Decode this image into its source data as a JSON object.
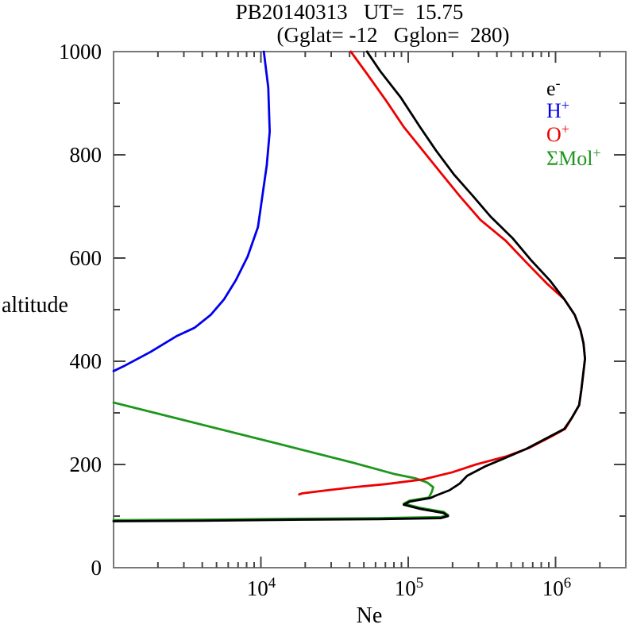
{
  "title": {
    "line1": "PB20140313   UT=  15.75",
    "line2": "(Gglat= -12   Gglon=  280)"
  },
  "axes": {
    "y_label": "altitude",
    "x_label": "Ne",
    "y_ticks": [
      {
        "label": "0",
        "alt": 0
      },
      {
        "label": "200",
        "alt": 200
      },
      {
        "label": "400",
        "alt": 400
      },
      {
        "label": "600",
        "alt": 600
      },
      {
        "label": "800",
        "alt": 800
      },
      {
        "label": "1000",
        "alt": 1000
      }
    ],
    "x_ticks": [
      {
        "base": "10",
        "exp": "4",
        "value": 10000
      },
      {
        "base": "10",
        "exp": "5",
        "value": 100000
      },
      {
        "base": "10",
        "exp": "6",
        "value": 1000000
      }
    ],
    "frame_color": "#787878",
    "tick_color": "#454545"
  },
  "legend": {
    "items": [
      {
        "base": "e",
        "sup": "-",
        "color": "#000000",
        "series": "electrons"
      },
      {
        "base": "H",
        "sup": "+",
        "color": "#0000ee",
        "series": "hydrogen-ions"
      },
      {
        "base": "O",
        "sup": "+",
        "color": "#ee0000",
        "series": "oxygen-ions"
      },
      {
        "base": "ΣMol",
        "sup": "+",
        "color": "#1e961e",
        "series": "molecular-ions"
      }
    ]
  },
  "chart_data": {
    "type": "line",
    "title": "PB20140313 UT= 15.75 (Gglat= -12 Gglon= 280)",
    "xlabel": "Ne",
    "ylabel": "altitude",
    "x_scale": "log",
    "x_range": [
      1000,
      3000000
    ],
    "y_range": [
      0,
      1000
    ],
    "grid": false,
    "legend_position": "upper-right-inside",
    "points_format": "[log10_of_Ne, altitude]",
    "series": [
      {
        "name": "H+",
        "color": "#0000ee",
        "points": [
          [
            4.02,
            1000
          ],
          [
            4.05,
            930
          ],
          [
            4.06,
            845
          ],
          [
            4.04,
            780
          ],
          [
            4.0,
            700
          ],
          [
            3.98,
            660
          ],
          [
            3.91,
            603
          ],
          [
            3.83,
            557
          ],
          [
            3.75,
            520
          ],
          [
            3.66,
            490
          ],
          [
            3.55,
            465
          ],
          [
            3.43,
            449
          ],
          [
            3.25,
            418
          ],
          [
            3.08,
            392
          ],
          [
            3.0,
            381
          ]
        ]
      },
      {
        "name": "SigmaMol+",
        "color": "#1e961e",
        "points": [
          [
            3.0,
            320
          ],
          [
            3.56,
            280
          ],
          [
            4.12,
            240
          ],
          [
            4.63,
            203
          ],
          [
            4.9,
            182
          ],
          [
            5.05,
            173
          ],
          [
            5.13,
            165
          ],
          [
            5.17,
            156
          ],
          [
            5.16,
            147
          ],
          [
            5.14,
            136
          ],
          [
            5.01,
            130
          ],
          [
            4.97,
            124
          ],
          [
            5.08,
            116
          ],
          [
            5.24,
            108
          ],
          [
            5.27,
            102
          ],
          [
            5.22,
            98
          ],
          [
            4.8,
            96
          ],
          [
            4.3,
            95
          ],
          [
            3.6,
            93
          ],
          [
            3.0,
            92
          ]
        ]
      },
      {
        "name": "O+",
        "color": "#ee0000",
        "points": [
          [
            4.61,
            1000
          ],
          [
            4.72,
            957
          ],
          [
            4.85,
            905
          ],
          [
            4.97,
            854
          ],
          [
            5.1,
            808
          ],
          [
            5.23,
            762
          ],
          [
            5.35,
            720
          ],
          [
            5.49,
            674
          ],
          [
            5.66,
            634
          ],
          [
            5.8,
            592
          ],
          [
            5.94,
            551
          ],
          [
            6.06,
            520
          ],
          [
            6.13,
            490
          ],
          [
            6.17,
            460
          ],
          [
            6.19,
            435
          ],
          [
            6.2,
            405
          ],
          [
            6.19,
            380
          ],
          [
            6.175,
            345
          ],
          [
            6.16,
            315
          ],
          [
            6.11,
            290
          ],
          [
            6.065,
            269
          ],
          [
            5.97,
            254
          ],
          [
            5.82,
            232
          ],
          [
            5.67,
            216
          ],
          [
            5.46,
            200
          ],
          [
            5.3,
            185
          ],
          [
            5.1,
            171
          ],
          [
            4.85,
            162
          ],
          [
            4.63,
            156
          ],
          [
            4.45,
            150
          ],
          [
            4.28,
            144
          ],
          [
            4.26,
            142
          ]
        ]
      },
      {
        "name": "e-",
        "color": "#000000",
        "points": [
          [
            4.72,
            1000
          ],
          [
            4.81,
            962
          ],
          [
            4.95,
            911
          ],
          [
            5.08,
            854
          ],
          [
            5.19,
            808
          ],
          [
            5.31,
            762
          ],
          [
            5.44,
            720
          ],
          [
            5.56,
            680
          ],
          [
            5.71,
            638
          ],
          [
            5.83,
            597
          ],
          [
            5.96,
            557
          ],
          [
            6.06,
            520
          ],
          [
            6.13,
            490
          ],
          [
            6.17,
            460
          ],
          [
            6.19,
            435
          ],
          [
            6.2,
            405
          ],
          [
            6.19,
            380
          ],
          [
            6.175,
            345
          ],
          [
            6.16,
            315
          ],
          [
            6.11,
            290
          ],
          [
            6.06,
            269
          ],
          [
            5.96,
            254
          ],
          [
            5.8,
            230
          ],
          [
            5.67,
            214
          ],
          [
            5.52,
            196
          ],
          [
            5.4,
            178
          ],
          [
            5.35,
            163
          ],
          [
            5.28,
            150
          ],
          [
            5.19,
            140
          ],
          [
            5.15,
            135
          ],
          [
            5.01,
            128
          ],
          [
            4.97,
            122
          ],
          [
            5.08,
            114
          ],
          [
            5.24,
            106
          ],
          [
            5.27,
            100
          ],
          [
            5.22,
            96
          ],
          [
            4.8,
            94
          ],
          [
            4.3,
            93
          ],
          [
            3.6,
            91
          ],
          [
            3.0,
            90
          ]
        ]
      }
    ]
  }
}
